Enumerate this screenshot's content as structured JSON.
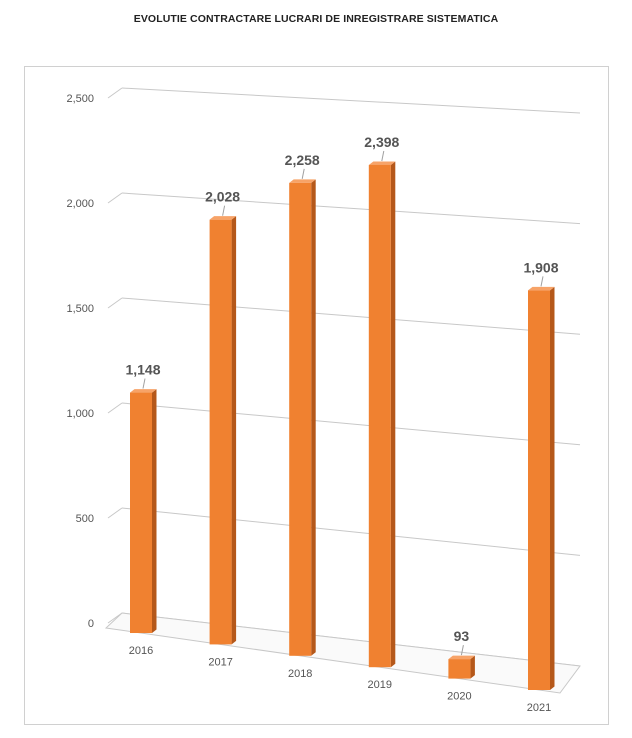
{
  "title": "EVOLUTIE CONTRACTARE LUCRARI DE INREGISTRARE SISTEMATICA",
  "chart_data": {
    "type": "bar",
    "title": "EVOLUTIE CONTRACTARE LUCRARI DE INREGISTRARE SISTEMATICA",
    "categories": [
      "2016",
      "2017",
      "2018",
      "2019",
      "2020",
      "2021"
    ],
    "values": [
      1148,
      2028,
      2258,
      2398,
      93,
      1908
    ],
    "value_labels": [
      "1,148",
      "2,028",
      "2,258",
      "2,398",
      "93",
      "1,908"
    ],
    "yticks": [
      0,
      500,
      1000,
      1500,
      2000,
      2500
    ],
    "ytick_labels": [
      "0",
      "500",
      "1,000",
      "1,500",
      "2,000",
      "2,500"
    ],
    "ylim": [
      0,
      2500
    ],
    "xlabel": "",
    "ylabel": "",
    "grid": true,
    "legend": "none",
    "style": "3d-perspective-columns",
    "colors": {
      "bar_front": "#f08130",
      "bar_side": "#b5581a",
      "bar_top": "#f7a368",
      "grid": "#c8c8c8",
      "text": "#555555"
    }
  }
}
